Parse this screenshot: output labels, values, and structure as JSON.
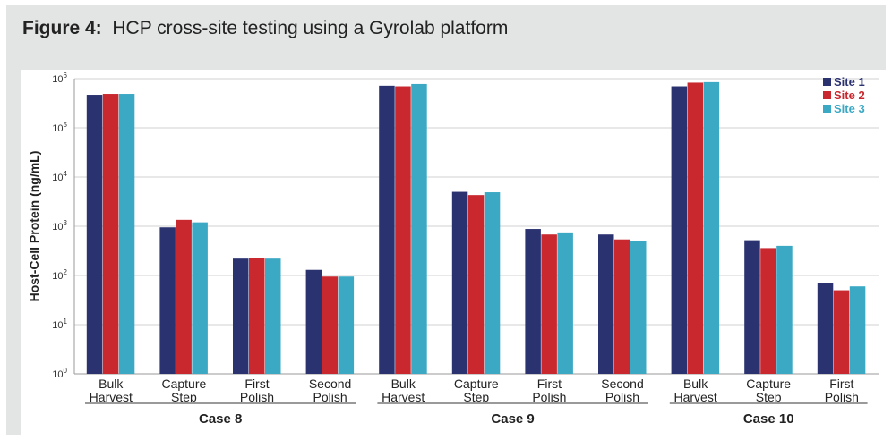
{
  "figure": {
    "label": "Figure 4:",
    "title": "HCP cross-site testing using a Gyrolab platform"
  },
  "chart_data": {
    "type": "bar",
    "ylabel": "Host-Cell Protein (ng/mL)",
    "yscale": "log",
    "ylim": [
      1,
      1000000
    ],
    "yticks": [
      {
        "value": 1,
        "base": "10",
        "exp": "0"
      },
      {
        "value": 10,
        "base": "10",
        "exp": "1"
      },
      {
        "value": 100,
        "base": "10",
        "exp": "2"
      },
      {
        "value": 1000,
        "base": "10",
        "exp": "3"
      },
      {
        "value": 10000,
        "base": "10",
        "exp": "4"
      },
      {
        "value": 100000,
        "base": "10",
        "exp": "5"
      },
      {
        "value": 1000000,
        "base": "10",
        "exp": "6"
      }
    ],
    "grid": true,
    "legend_position": "top-right",
    "series": [
      {
        "name": "Site 1",
        "color": "#2b3270"
      },
      {
        "name": "Site 2",
        "color": "#c8282e"
      },
      {
        "name": "Site 3",
        "color": "#3ba8c4"
      }
    ],
    "groups": [
      {
        "name": "Case 8",
        "categories": [
          {
            "label": [
              "Bulk",
              "Harvest"
            ],
            "values": [
              470000,
              490000,
              490000
            ]
          },
          {
            "label": [
              "Capture",
              "Step"
            ],
            "values": [
              950,
              1350,
              1200
            ]
          },
          {
            "label": [
              "First",
              "Polish"
            ],
            "values": [
              220,
              230,
              220
            ]
          },
          {
            "label": [
              "Second",
              "Polish"
            ],
            "values": [
              130,
              95,
              95
            ]
          }
        ]
      },
      {
        "name": "Case 9",
        "categories": [
          {
            "label": [
              "Bulk",
              "Harvest"
            ],
            "values": [
              720000,
              700000,
              780000
            ]
          },
          {
            "label": [
              "Capture",
              "Step"
            ],
            "values": [
              5000,
              4300,
              4900
            ]
          },
          {
            "label": [
              "First",
              "Polish"
            ],
            "values": [
              880,
              680,
              750
            ]
          },
          {
            "label": [
              "Second",
              "Polish"
            ],
            "values": [
              680,
              540,
              500
            ]
          }
        ]
      },
      {
        "name": "Case 10",
        "categories": [
          {
            "label": [
              "Bulk",
              "Harvest"
            ],
            "values": [
              700000,
              830000,
              850000
            ]
          },
          {
            "label": [
              "Capture",
              "Step"
            ],
            "values": [
              520,
              360,
              400
            ]
          },
          {
            "label": [
              "First",
              "Polish"
            ],
            "values": [
              70,
              50,
              60
            ]
          }
        ]
      }
    ]
  }
}
